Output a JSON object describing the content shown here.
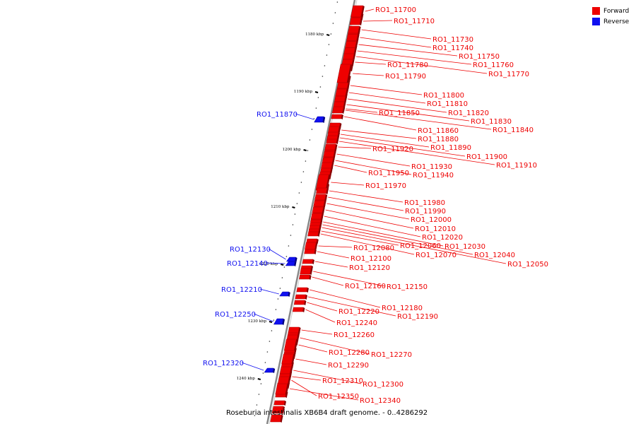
{
  "colors": {
    "forward": "#ee0000",
    "reverse": "#1010f0",
    "axis": "#888888"
  },
  "legend": {
    "forward_label": "Forward",
    "reverse_label": "Reverse"
  },
  "caption": "Roseburia intestinalis XB6B4 draft genome. - 0..4286292",
  "axis": {
    "ticks": [
      {
        "label": "1180 kbp",
        "kbp": 1180
      },
      {
        "label": "1190 kbp",
        "kbp": 1190
      },
      {
        "label": "1200 kbp",
        "kbp": 1200
      },
      {
        "label": "1210 kbp",
        "kbp": 1210
      },
      {
        "label": "1220 kbp",
        "kbp": 1220
      },
      {
        "label": "1230 kbp",
        "kbp": 1230
      },
      {
        "label": "1240 kbp",
        "kbp": 1240
      }
    ]
  },
  "genes": [
    {
      "label": "RO1_11700",
      "strand": "forward"
    },
    {
      "label": "RO1_11710",
      "strand": "forward"
    },
    {
      "label": "RO1_11730",
      "strand": "forward"
    },
    {
      "label": "RO1_11740",
      "strand": "forward"
    },
    {
      "label": "RO1_11750",
      "strand": "forward"
    },
    {
      "label": "RO1_11760",
      "strand": "forward"
    },
    {
      "label": "RO1_11770",
      "strand": "forward"
    },
    {
      "label": "RO1_11780",
      "strand": "forward"
    },
    {
      "label": "RO1_11790",
      "strand": "forward"
    },
    {
      "label": "RO1_11800",
      "strand": "forward"
    },
    {
      "label": "RO1_11810",
      "strand": "forward"
    },
    {
      "label": "RO1_11820",
      "strand": "forward"
    },
    {
      "label": "RO1_11830",
      "strand": "forward"
    },
    {
      "label": "RO1_11840",
      "strand": "forward"
    },
    {
      "label": "RO1_11850",
      "strand": "forward"
    },
    {
      "label": "RO1_11860",
      "strand": "forward"
    },
    {
      "label": "RO1_11870",
      "strand": "reverse"
    },
    {
      "label": "RO1_11880",
      "strand": "forward"
    },
    {
      "label": "RO1_11890",
      "strand": "forward"
    },
    {
      "label": "RO1_11900",
      "strand": "forward"
    },
    {
      "label": "RO1_11910",
      "strand": "forward"
    },
    {
      "label": "RO1_11920",
      "strand": "forward"
    },
    {
      "label": "RO1_11930",
      "strand": "forward"
    },
    {
      "label": "RO1_11940",
      "strand": "forward"
    },
    {
      "label": "RO1_11950",
      "strand": "forward"
    },
    {
      "label": "RO1_11970",
      "strand": "forward"
    },
    {
      "label": "RO1_11980",
      "strand": "forward"
    },
    {
      "label": "RO1_11990",
      "strand": "forward"
    },
    {
      "label": "RO1_12000",
      "strand": "forward"
    },
    {
      "label": "RO1_12010",
      "strand": "forward"
    },
    {
      "label": "RO1_12020",
      "strand": "forward"
    },
    {
      "label": "RO1_12030",
      "strand": "forward"
    },
    {
      "label": "RO1_12040",
      "strand": "forward"
    },
    {
      "label": "RO1_12050",
      "strand": "forward"
    },
    {
      "label": "RO1_12060",
      "strand": "forward"
    },
    {
      "label": "RO1_12070",
      "strand": "forward"
    },
    {
      "label": "RO1_12080",
      "strand": "forward"
    },
    {
      "label": "RO1_12100",
      "strand": "forward"
    },
    {
      "label": "RO1_12120",
      "strand": "forward"
    },
    {
      "label": "RO1_12130",
      "strand": "reverse"
    },
    {
      "label": "RO1_12140",
      "strand": "reverse"
    },
    {
      "label": "RO1_12150",
      "strand": "forward"
    },
    {
      "label": "RO1_12160",
      "strand": "forward"
    },
    {
      "label": "RO1_12180",
      "strand": "forward"
    },
    {
      "label": "RO1_12190",
      "strand": "forward"
    },
    {
      "label": "RO1_12210",
      "strand": "reverse"
    },
    {
      "label": "RO1_12220",
      "strand": "forward"
    },
    {
      "label": "RO1_12240",
      "strand": "forward"
    },
    {
      "label": "RO1_12250",
      "strand": "reverse"
    },
    {
      "label": "RO1_12260",
      "strand": "forward"
    },
    {
      "label": "RO1_12270",
      "strand": "forward"
    },
    {
      "label": "RO1_12280",
      "strand": "forward"
    },
    {
      "label": "RO1_12290",
      "strand": "forward"
    },
    {
      "label": "RO1_12300",
      "strand": "forward"
    },
    {
      "label": "RO1_12310",
      "strand": "forward"
    },
    {
      "label": "RO1_12320",
      "strand": "reverse"
    },
    {
      "label": "RO1_12340",
      "strand": "forward"
    },
    {
      "label": "RO1_12350",
      "strand": "forward"
    }
  ]
}
